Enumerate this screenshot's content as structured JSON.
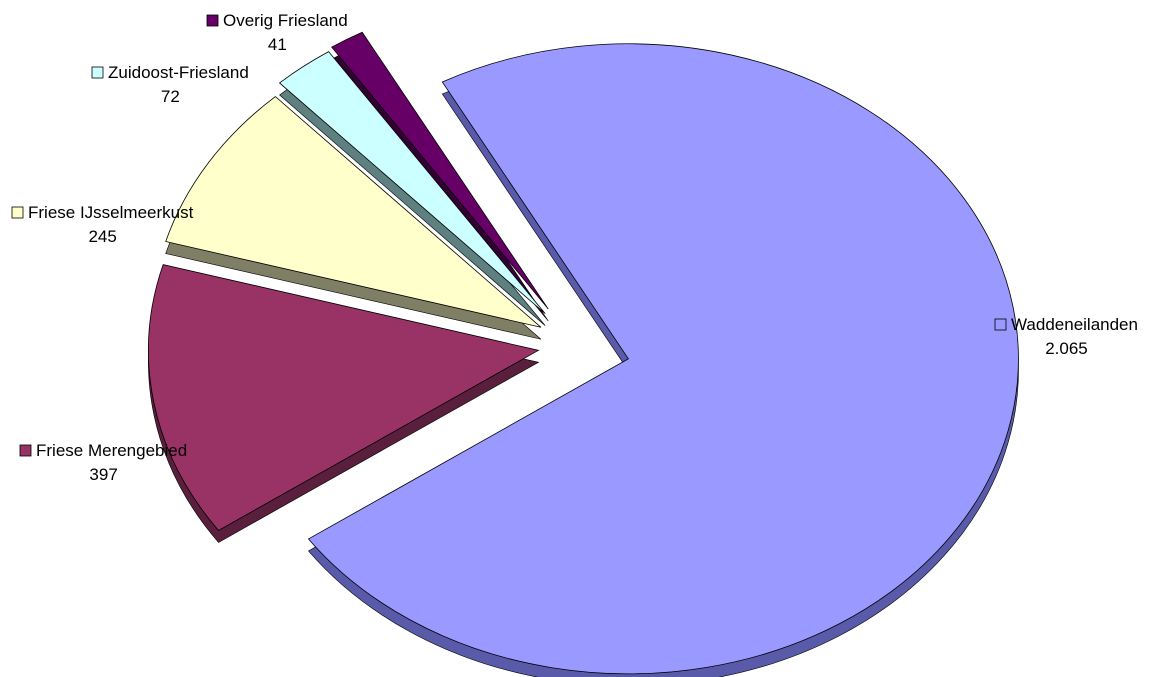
{
  "chart_data": {
    "type": "pie",
    "style": "3d-exploded",
    "slices": [
      {
        "label": "Waddeneilanden",
        "value_label": "2.065",
        "value": 2065,
        "color": "#9999FF",
        "side_color": "#5A5AAA"
      },
      {
        "label": "Friese Merengebied",
        "value_label": "397",
        "value": 397,
        "color": "#993366",
        "side_color": "#5A1F3C"
      },
      {
        "label": "Friese IJsselmeerkust",
        "value_label": "245",
        "value": 245,
        "color": "#FFFFCC",
        "side_color": "#7F7F66"
      },
      {
        "label": "Zuidoost-Friesland",
        "value_label": "72",
        "value": 72,
        "color": "#CCFFFF",
        "side_color": "#5F8080"
      },
      {
        "label": "Overig Friesland",
        "value_label": "41",
        "value": 41,
        "color": "#660066",
        "side_color": "#330033"
      }
    ]
  }
}
